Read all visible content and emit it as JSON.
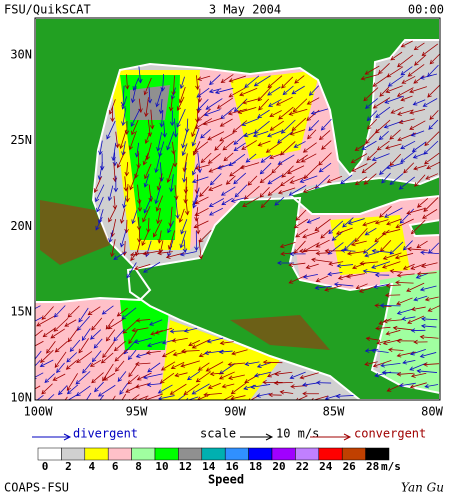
{
  "header": {
    "source": "FSU/QuikSCAT",
    "date": "3 May 2004",
    "time": "00:00"
  },
  "map": {
    "lat_labels": [
      "30N",
      "25N",
      "20N",
      "15N",
      "10N"
    ],
    "lon_labels": [
      "100W",
      "95W",
      "90W",
      "85W",
      "80W"
    ]
  },
  "legend": {
    "divergent": "divergent",
    "scale": "scale",
    "scale_value": "10 m/s",
    "convergent": "convergent"
  },
  "colorbar": {
    "labels": [
      0,
      2,
      4,
      6,
      8,
      10,
      12,
      14,
      16,
      18,
      20,
      22,
      24,
      26,
      28
    ],
    "colors": [
      "#ffffff",
      "#d0d0d0",
      "#ffff00",
      "#ffc0c8",
      "#a0ffa0",
      "#00ff00",
      "#909090",
      "#00b0b0",
      "#3090ff",
      "#0000ff",
      "#a000ff",
      "#c080ff",
      "#ff0000",
      "#c04000",
      "#000000"
    ],
    "unit": "m/s",
    "title": "Speed"
  },
  "footer": {
    "left": "COAPS-FSU",
    "right": "Yan Gu"
  }
}
